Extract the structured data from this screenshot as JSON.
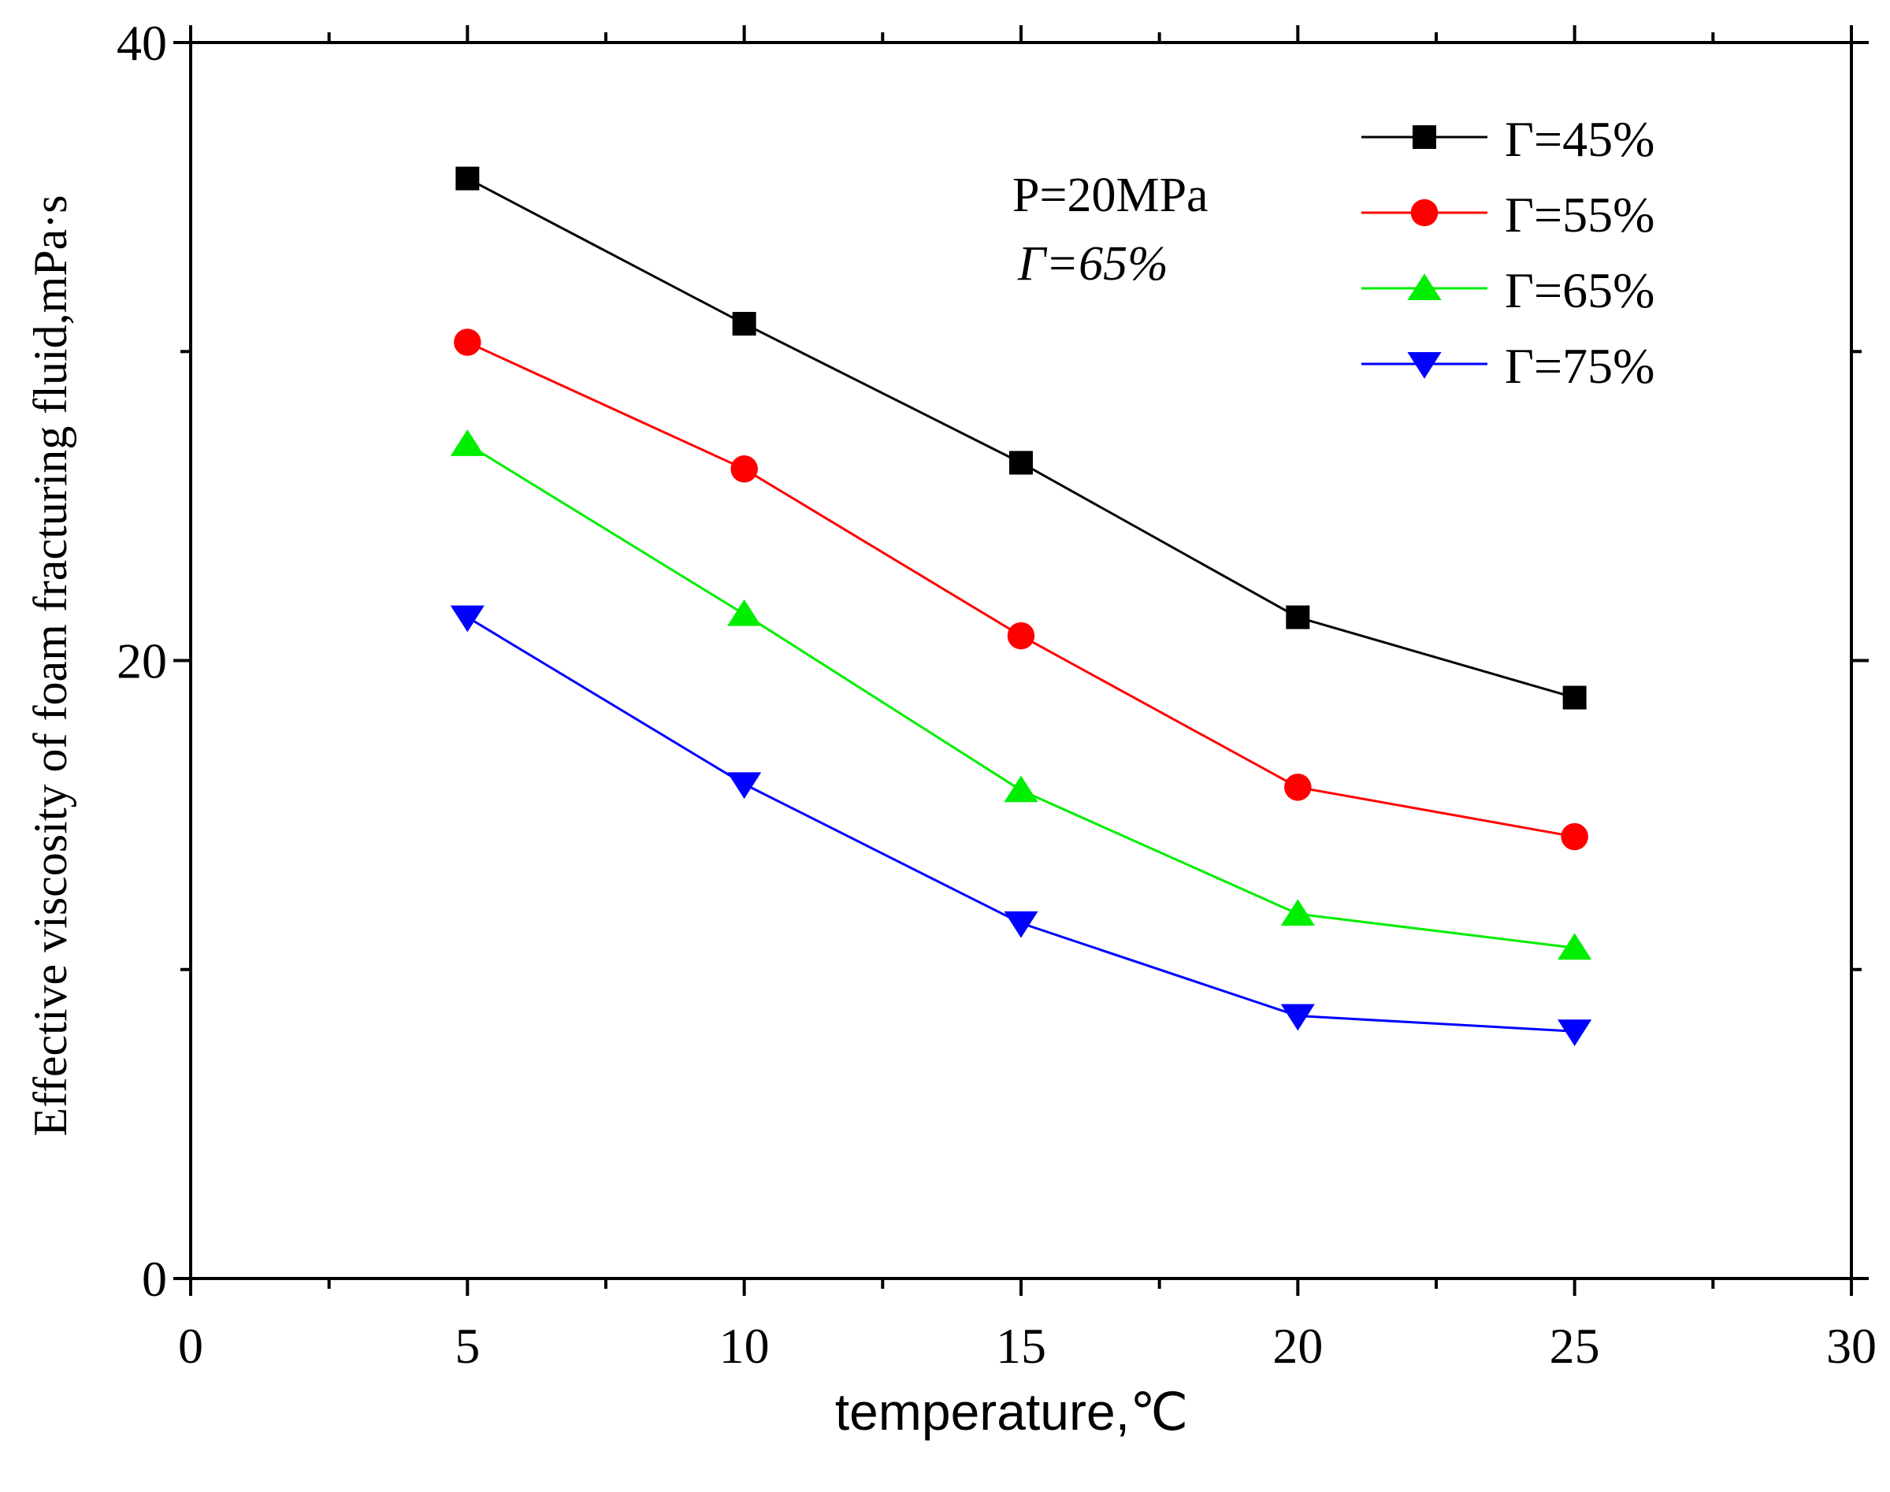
{
  "chart_data": {
    "type": "line",
    "title": "",
    "xlabel": "temperature,℃",
    "ylabel": "Effective viscosity of foam fracturing fluid,mPa·s",
    "xlim": [
      0,
      30
    ],
    "ylim": [
      0,
      40
    ],
    "x_ticks": [
      0,
      5,
      10,
      15,
      20,
      25,
      30
    ],
    "y_ticks": [
      0,
      20,
      40
    ],
    "x": [
      5,
      10,
      15,
      20,
      25
    ],
    "series": [
      {
        "name": "Γ=45%",
        "values": [
          35.6,
          30.9,
          26.4,
          21.4,
          18.8
        ],
        "color": "#000000",
        "marker": "square"
      },
      {
        "name": "Γ=55%",
        "values": [
          30.3,
          26.2,
          20.8,
          15.9,
          14.3
        ],
        "color": "#ff0000",
        "marker": "circle"
      },
      {
        "name": "Γ=65%",
        "values": [
          27.0,
          21.5,
          15.8,
          11.8,
          10.7
        ],
        "color": "#00ee00",
        "marker": "triangle-up"
      },
      {
        "name": "Γ=75%",
        "values": [
          21.4,
          16.0,
          11.5,
          8.5,
          8.0
        ],
        "color": "#0000ff",
        "marker": "triangle-down"
      }
    ],
    "annotation_lines": [
      "P=20MPa",
      "Γ=65%"
    ],
    "legend_position": "top-right",
    "grid": false
  }
}
